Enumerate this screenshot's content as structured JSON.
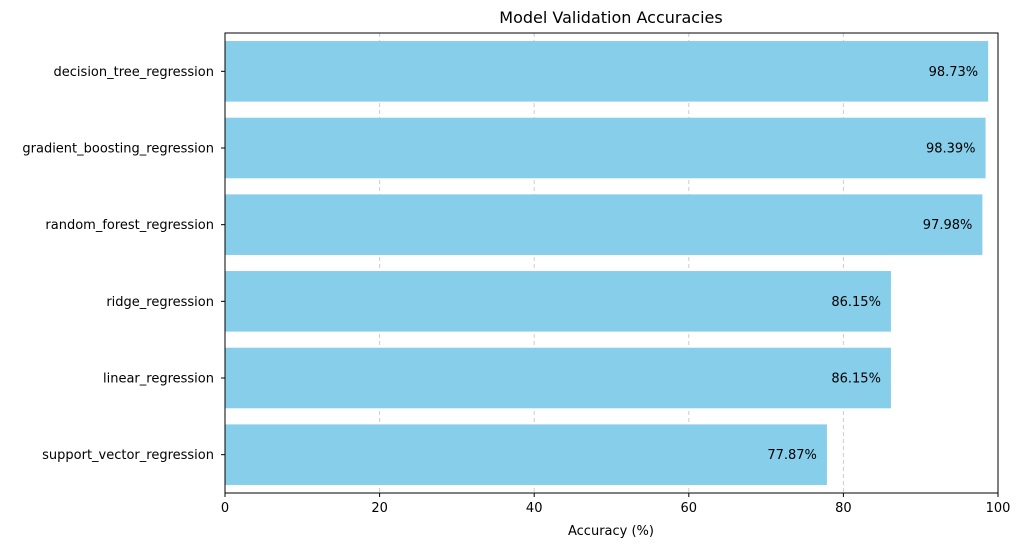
{
  "chart_data": {
    "type": "bar",
    "orientation": "horizontal",
    "title": "Model Validation Accuracies",
    "xlabel": "Accuracy (%)",
    "ylabel": "",
    "xlim": [
      0,
      100
    ],
    "x_ticks": [
      "0",
      "20",
      "40",
      "60",
      "80",
      "100"
    ],
    "grid": "x-axis dashed",
    "bar_color": "#87CEEB",
    "categories": [
      "decision_tree_regression",
      "gradient_boosting_regression",
      "random_forest_regression",
      "ridge_regression",
      "linear_regression",
      "support_vector_regression"
    ],
    "values": [
      98.73,
      98.39,
      97.98,
      86.15,
      86.15,
      77.87
    ],
    "value_labels": [
      "98.73%",
      "98.39%",
      "97.98%",
      "86.15%",
      "86.15%",
      "77.87%"
    ]
  }
}
